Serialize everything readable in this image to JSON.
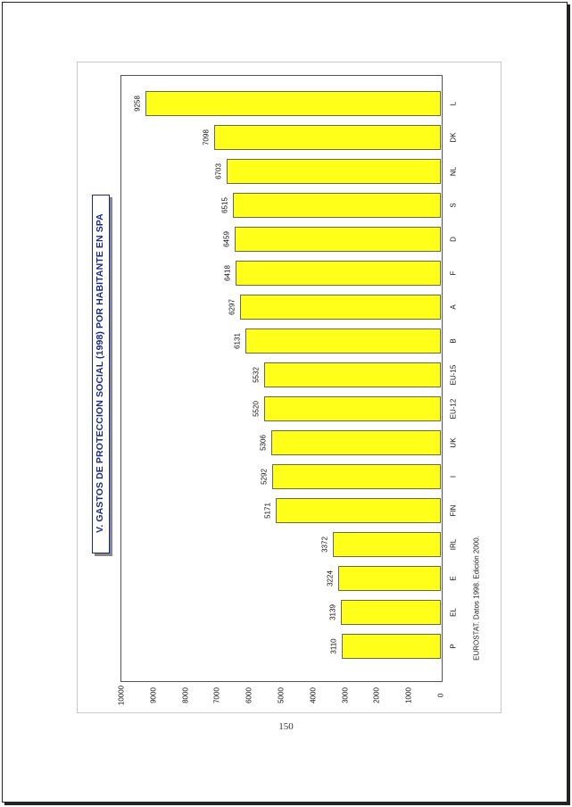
{
  "title": "V. GASTOS DE PROTECCION SOCIAL (1998) POR HABITANTE EN SPA",
  "source": "EUROSTAT. Datos 1998. Edición 2000.",
  "page_number": "150",
  "colors": {
    "bar_fill": "#ffff1a",
    "title": "#1a2a8a"
  },
  "chart_data": {
    "type": "bar",
    "orientation": "horizontal (page rotated 90°)",
    "title": "V. GASTOS DE PROTECCION SOCIAL (1998) POR HABITANTE EN SPA",
    "categories": [
      "P",
      "EL",
      "E",
      "IRL",
      "FIN",
      "I",
      "UK",
      "EU-12",
      "EU-15",
      "B",
      "A",
      "F",
      "D",
      "S",
      "NL",
      "DK",
      "L"
    ],
    "values": [
      3110,
      3139,
      3224,
      3372,
      5171,
      5292,
      5306,
      5520,
      5532,
      6131,
      6297,
      6418,
      6459,
      6515,
      6703,
      7098,
      9258
    ],
    "value_labels": [
      "3110",
      "3139",
      "3224",
      "3372",
      "5171",
      "5292",
      "5306",
      "5520",
      "5532",
      "6131",
      "6297",
      "6418",
      "6459",
      "6515",
      "6703",
      "7098",
      "9258"
    ],
    "ticks": [
      "0",
      "1000",
      "2000",
      "3000",
      "4000",
      "5000",
      "6000",
      "7000",
      "8000",
      "9000",
      "10000"
    ],
    "ylim": [
      0,
      10000
    ],
    "grid": false,
    "legend": "none"
  }
}
